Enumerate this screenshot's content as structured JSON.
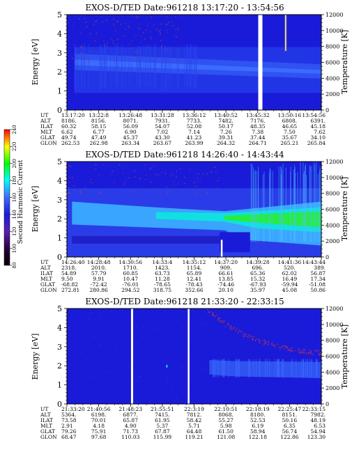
{
  "colors": {
    "background": "#ffffff",
    "axis": "#000000",
    "deep_blue": "#1a1bd8",
    "mid_blue": "#2f52f0",
    "light_blue": "#39a5ff",
    "cyan": "#11e0e0",
    "green": "#25ee3c",
    "gap": "#ffffff"
  },
  "colorbar": {
    "label": "Second Harmonic Current",
    "ticks": [
      "240",
      "220",
      "200",
      "180",
      "160",
      "140",
      "120",
      "100",
      "80"
    ],
    "stops": [
      "#ff0000",
      "#ffff00",
      "#00ff00",
      "#00ffff",
      "#3f6bff",
      "#1a1bd8",
      "#5b20b0",
      "#2a0040",
      "#000000"
    ]
  },
  "chart_data": [
    {
      "type": "heatmap",
      "title": "EXOS-D/TED   Date:961218   13:17:20 - 13:54:56",
      "ylabel": "Energy [eV]",
      "y2label": "Temperature [K]",
      "ylim": [
        0,
        5
      ],
      "y_ticks": [
        "0",
        "1",
        "2",
        "3",
        "4",
        "5"
      ],
      "y2lim": [
        0,
        12000
      ],
      "y2_ticks": [
        "0",
        "2000",
        "4000",
        "6000",
        "8000",
        "10000",
        "12000"
      ],
      "row_labels": [
        "UT",
        "ALT",
        "ILAT",
        "MLT",
        "GLAT",
        "GLON"
      ],
      "columns": [
        [
          "13:17:20",
          "8186.",
          "60.32",
          "6.62",
          "49.74",
          "262.53"
        ],
        [
          "13:22:8",
          "8156.",
          "58.15",
          "6.77",
          "47.49",
          "262.98"
        ],
        [
          "13:26:48",
          "8071.",
          "56.09",
          "6.90",
          "45.37",
          "263.34"
        ],
        [
          "13:31:28",
          "7931.",
          "54.07",
          "7.02",
          "43.30",
          "263.67"
        ],
        [
          "13:36:12",
          "7733.",
          "52.08",
          "7.14",
          "41.23",
          "263.99"
        ],
        [
          "13:40:52",
          "7482.",
          "50.17",
          "7.26",
          "39.31",
          "264.32"
        ],
        [
          "13:45:32",
          "7176.",
          "48.35",
          "7.38",
          "37.44",
          "264.71"
        ],
        [
          "13:50:16",
          "6808.",
          "46.65",
          "7.50",
          "35.67",
          "265.21"
        ],
        [
          "13:54:56",
          "6391.",
          "45.18",
          "7.62",
          "34.10",
          "265.84"
        ]
      ]
    },
    {
      "type": "heatmap",
      "title": "EXOS-D/TED   Date:961218   14:26:40 - 14:43:44",
      "ylabel": "Energy [eV]",
      "y2label": "Temperature [K]",
      "ylim": [
        0,
        5
      ],
      "y_ticks": [
        "0",
        "1",
        "2",
        "3",
        "4",
        "5"
      ],
      "y2lim": [
        0,
        12000
      ],
      "y2_ticks": [
        "0",
        "2000",
        "4000",
        "6000",
        "8000",
        "10000",
        "12000"
      ],
      "row_labels": [
        "UT",
        "ALT",
        "ILAT",
        "MLT",
        "GLAT",
        "GLON"
      ],
      "columns": [
        [
          "14:26:40",
          "2318.",
          "54.89",
          "9.50",
          "-68.82",
          "272.81"
        ],
        [
          "14:28:48",
          "2010.",
          "57.79",
          "9.91",
          "-72.42",
          "280.86"
        ],
        [
          "14:30:56",
          "1710.",
          "60.85",
          "10.47",
          "-76.01",
          "294.52"
        ],
        [
          "14:33:4",
          "1423.",
          "63.73",
          "11.28",
          "-78.65",
          "318.75"
        ],
        [
          "14:35:12",
          "1154.",
          "65.89",
          "12.41",
          "-78.43",
          "352.66"
        ],
        [
          "14:37:20",
          "909.",
          "66.61",
          "13.85",
          "-74.46",
          "20.10"
        ],
        [
          "14:39:28",
          "696.",
          "65.36",
          "15.32",
          "-67.93",
          "35.97"
        ],
        [
          "14:41:36",
          "520.",
          "62.02",
          "16.49",
          "-59.94",
          "45.08"
        ],
        [
          "14:43:44",
          "389.",
          "56.87",
          "17.34",
          "-51.08",
          "50.86"
        ]
      ]
    },
    {
      "type": "heatmap",
      "title": "EXOS-D/TED   Date:961218   21:33:20 - 22:33:15",
      "ylabel": "Energy [eV]",
      "y2label": "Temperature [K]",
      "ylim": [
        0,
        5
      ],
      "y_ticks": [
        "0",
        "1",
        "2",
        "3",
        "4",
        "5"
      ],
      "y2lim": [
        0,
        12000
      ],
      "y2_ticks": [
        "0",
        "2000",
        "4000",
        "6000",
        "8000",
        "10000",
        "12000"
      ],
      "row_labels": [
        "UT",
        "ALT",
        "ILAT",
        "MLT",
        "GLAT",
        "GLON"
      ],
      "columns": [
        [
          "21:33:20",
          "5364.",
          "73.58",
          "2.91",
          "79.26",
          "68.47"
        ],
        [
          "21:40:56",
          "6198.",
          "70.01",
          "4.18",
          "75.91",
          "97.68"
        ],
        [
          "21:48:23",
          "6877.",
          "65.87",
          "4.90",
          "71.73",
          "110.03"
        ],
        [
          "21:55:51",
          "7415.",
          "61.95",
          "5.37",
          "67.87",
          "115.99"
        ],
        [
          "22:3:19",
          "7812.",
          "58.42",
          "5.71",
          "64.48",
          "119.21"
        ],
        [
          "22:10:51",
          "8068.",
          "55.27",
          "5.98",
          "61.50",
          "121.08"
        ],
        [
          "22:18:19",
          "8180.",
          "52.53",
          "6.19",
          "58.94",
          "122.18"
        ],
        [
          "22:25:47",
          "8151.",
          "50.16",
          "6.35",
          "56.74",
          "122.86"
        ],
        [
          "22:33:15",
          "7982.",
          "48.19",
          "6.53",
          "54.94",
          "123.30"
        ]
      ]
    }
  ]
}
